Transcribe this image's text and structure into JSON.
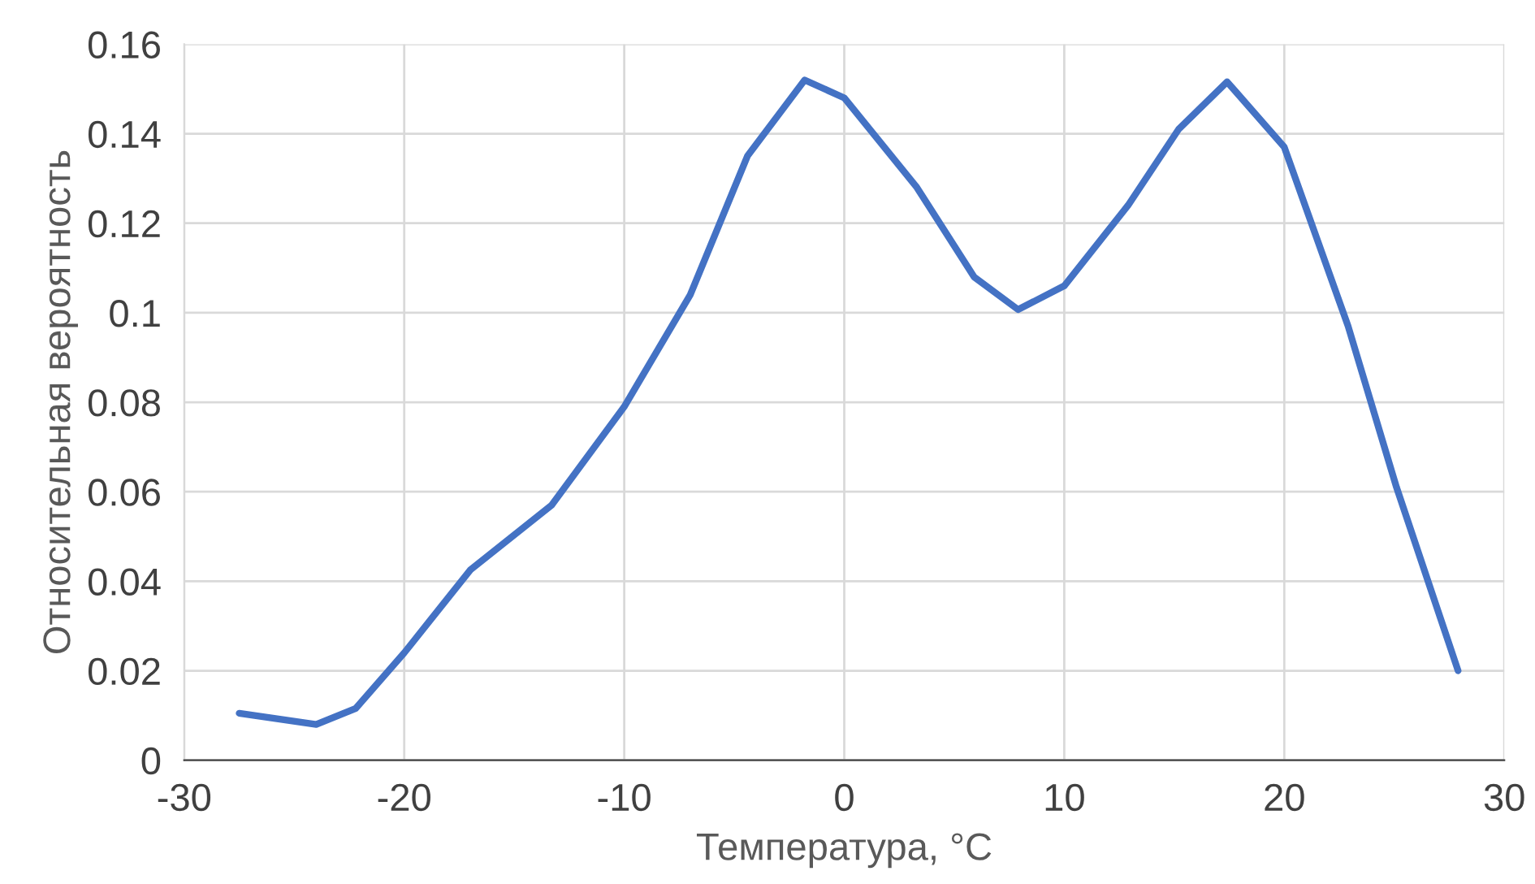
{
  "chart_data": {
    "type": "line",
    "xlabel": "Температура, °C",
    "ylabel": "Относительная вероятность",
    "x": [
      -27.5,
      -24,
      -22.2,
      -20,
      -17,
      -13.3,
      -10,
      -7,
      -4.4,
      -1.8,
      0,
      3.3,
      5.9,
      7.9,
      10,
      12.9,
      15.2,
      17.4,
      20,
      22.9,
      25.1,
      27.9
    ],
    "series": [
      {
        "color": "#4472c4",
        "values": [
          0.0105,
          0.008,
          0.0116,
          0.024,
          0.0425,
          0.057,
          0.079,
          0.104,
          0.135,
          0.152,
          0.148,
          0.128,
          0.108,
          0.1007,
          0.106,
          0.124,
          0.141,
          0.1516,
          0.137,
          0.097,
          0.061,
          0.02
        ]
      }
    ],
    "xlim": [
      -30,
      30
    ],
    "xticks": [
      -30,
      -20,
      -10,
      0,
      10,
      20,
      30
    ],
    "ylim": [
      0,
      0.16
    ],
    "yticks": [
      {
        "value": 0,
        "label": "0"
      },
      {
        "value": 0.02,
        "label": "0.02"
      },
      {
        "value": 0.04,
        "label": "0.04"
      },
      {
        "value": 0.06,
        "label": "0.06"
      },
      {
        "value": 0.08,
        "label": "0.08"
      },
      {
        "value": 0.1,
        "label": "0.1"
      },
      {
        "value": 0.12,
        "label": "0.12"
      },
      {
        "value": 0.14,
        "label": "0.14"
      },
      {
        "value": 0.16,
        "label": "0.16"
      }
    ],
    "grid": true,
    "marker": "none",
    "line_style": "solid"
  }
}
